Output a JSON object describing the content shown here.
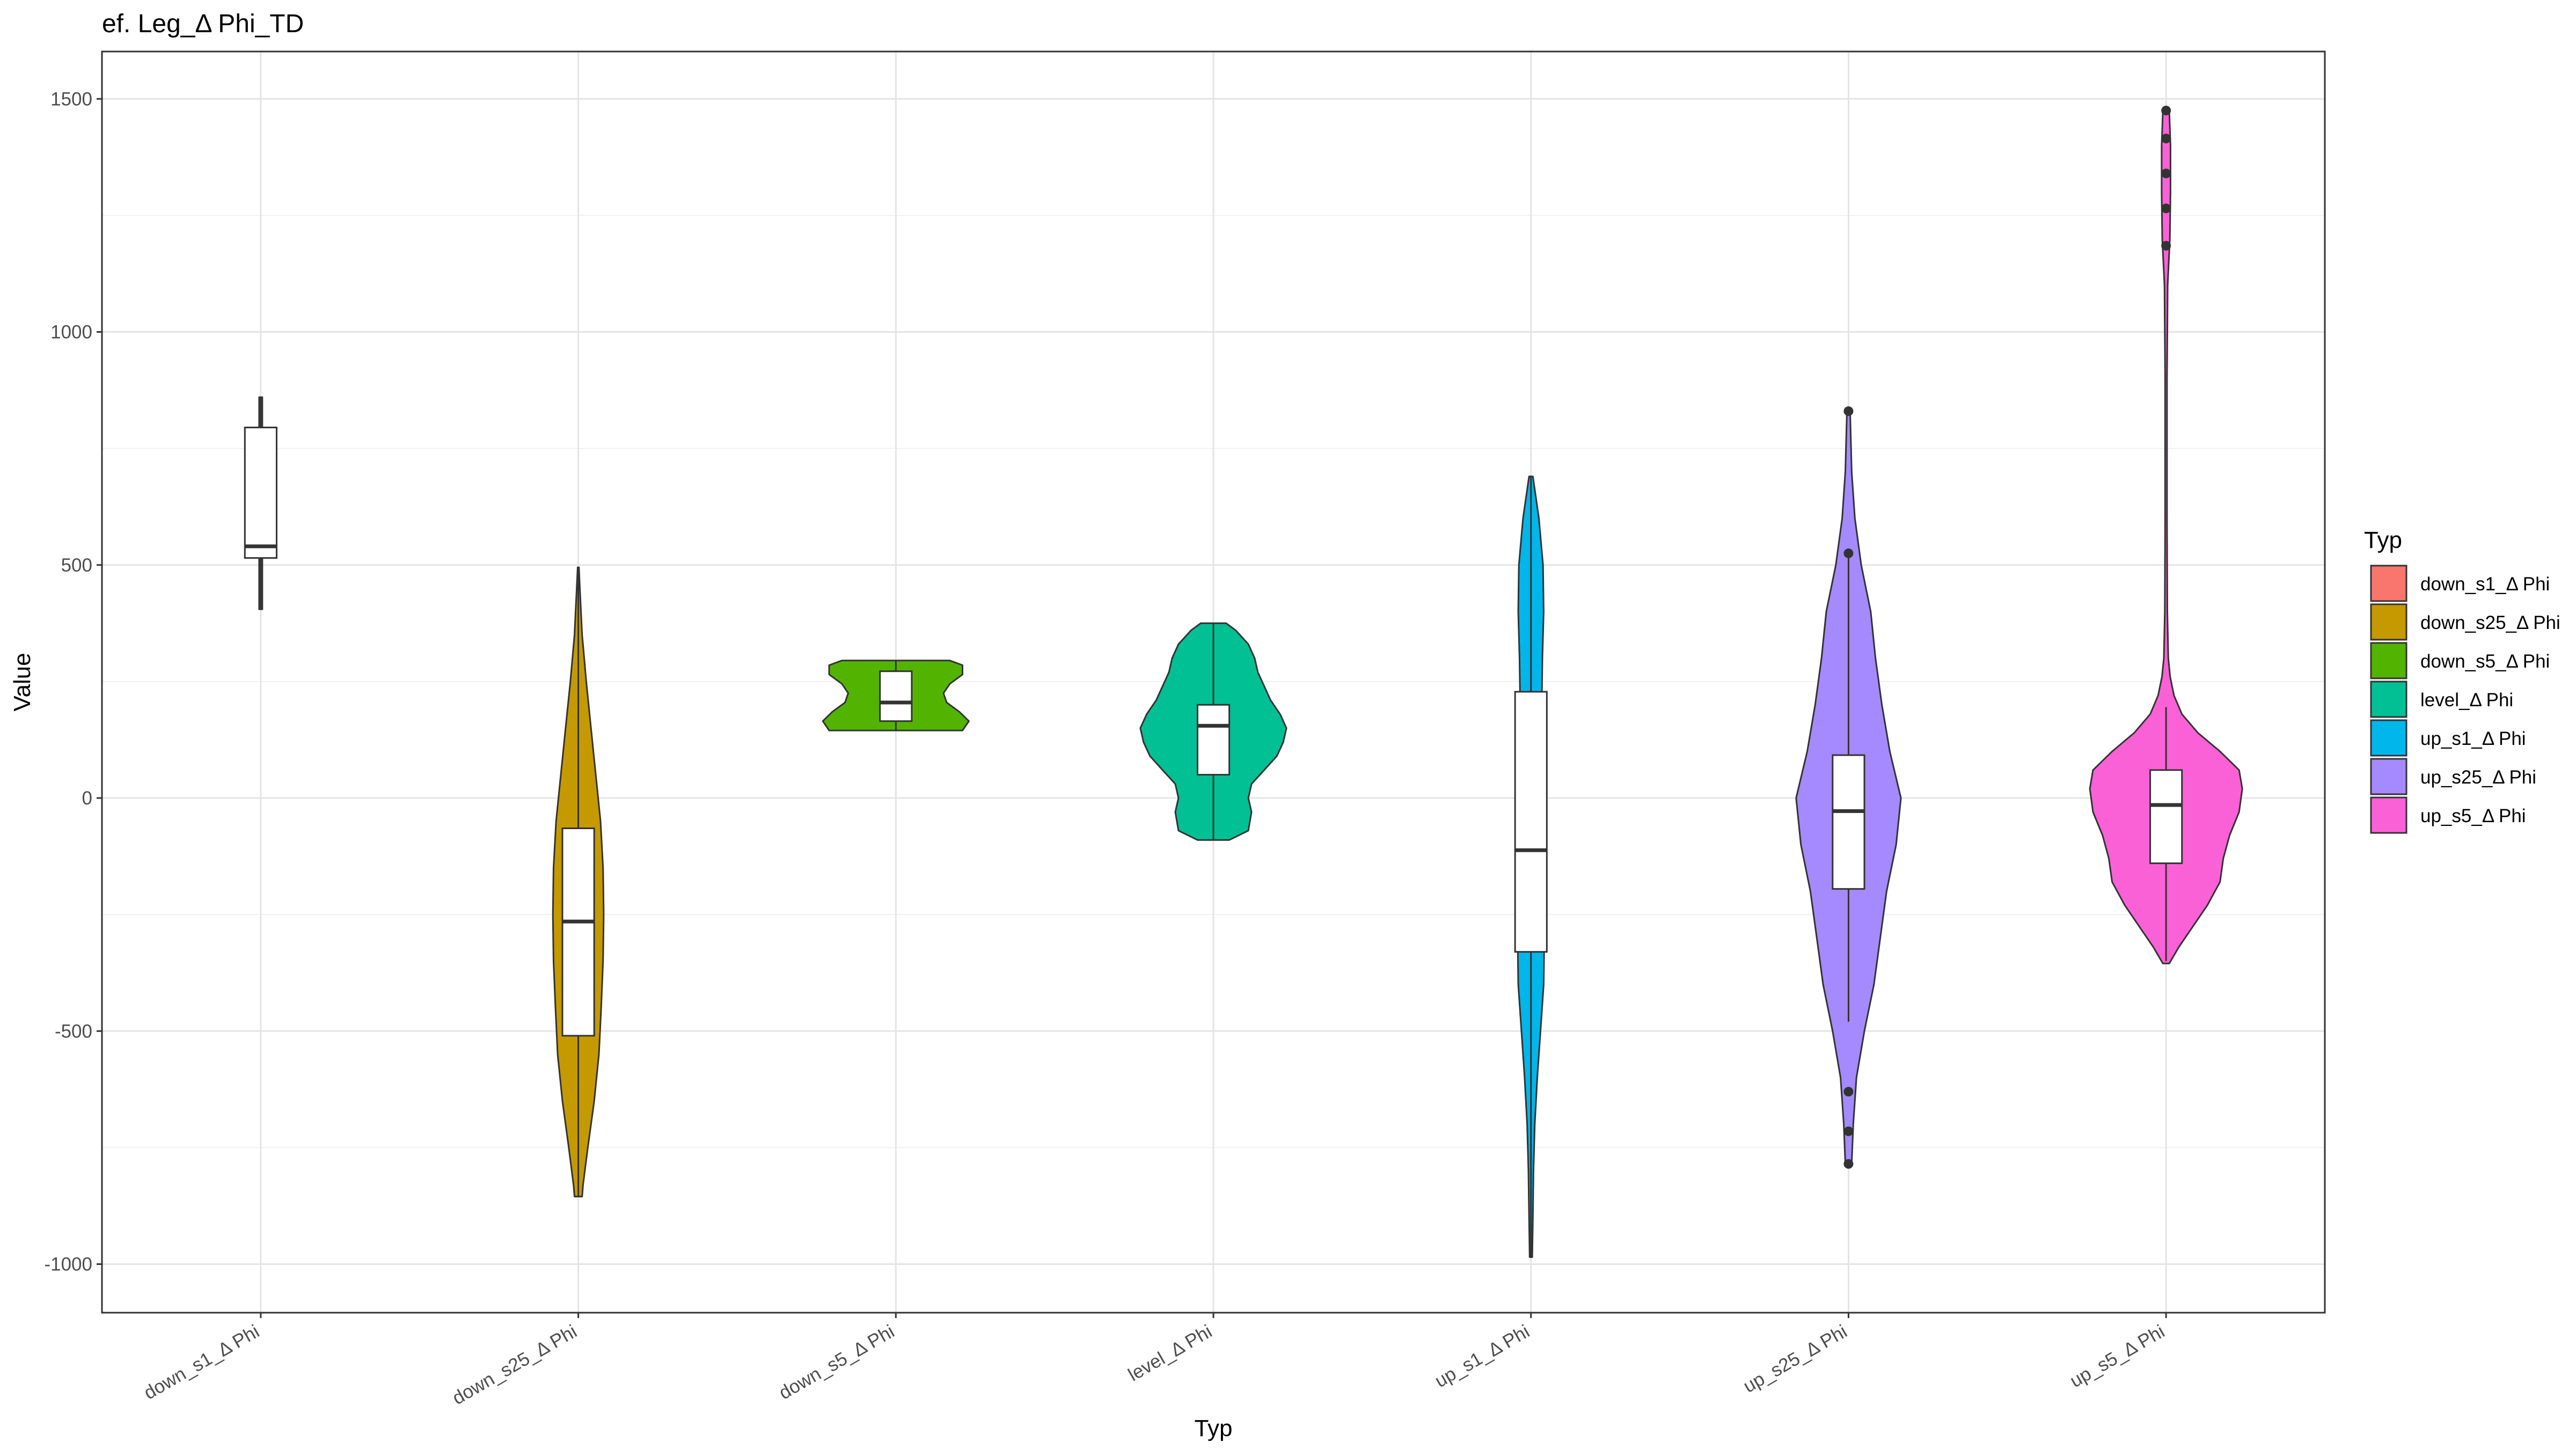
{
  "chart_data": {
    "type": "violin",
    "title": "ef. Leg_Δ Phi_TD",
    "xlabel": "Typ",
    "ylabel": "Value",
    "ylim": [
      -1100,
      1600
    ],
    "yticks": [
      -1000,
      -500,
      0,
      500,
      1000,
      1500
    ],
    "grid": true,
    "legend": {
      "title": "Typ",
      "placement": "right",
      "entries": [
        "down_s1_Δ Phi",
        "down_s25_Δ Phi",
        "down_s5_Δ Phi",
        "level_Δ Phi",
        "up_s1_Δ Phi",
        "up_s25_Δ Phi",
        "up_s5_Δ Phi"
      ]
    },
    "categories": [
      "down_s1_Δ Phi",
      "down_s25_Δ Phi",
      "down_s5_Δ Phi",
      "level_Δ Phi",
      "up_s1_Δ Phi",
      "up_s25_Δ Phi",
      "up_s5_Δ Phi"
    ],
    "colors": [
      "#F8766D",
      "#C49A00",
      "#53B400",
      "#00C094",
      "#00B6EB",
      "#A58AFF",
      "#FB61D7"
    ],
    "series": [
      {
        "name": "down_s1_Δ Phi",
        "box": {
          "q1": 515,
          "median": 540,
          "q3": 795,
          "whisker_low": 405,
          "whisker_high": 860
        },
        "outliers": [],
        "violin": {
          "y": [
            405,
            860
          ],
          "halfwidth": [
            0.005,
            0.005
          ]
        }
      },
      {
        "name": "down_s25_Δ Phi",
        "box": {
          "q1": -510,
          "median": -265,
          "q3": -65,
          "whisker_low": -855,
          "whisker_high": 495
        },
        "outliers": [],
        "violin": {
          "y": [
            -855,
            -830,
            -750,
            -650,
            -550,
            -450,
            -350,
            -250,
            -150,
            -50,
            50,
            150,
            250,
            350,
            450,
            495
          ],
          "halfwidth": [
            0.012,
            0.015,
            0.03,
            0.05,
            0.065,
            0.072,
            0.078,
            0.08,
            0.078,
            0.07,
            0.055,
            0.04,
            0.025,
            0.012,
            0.005,
            0.002
          ]
        }
      },
      {
        "name": "down_s5_Δ Phi",
        "box": {
          "q1": 165,
          "median": 205,
          "q3": 272,
          "whisker_low": 145,
          "whisker_high": 295
        },
        "outliers": [],
        "violin": {
          "y": [
            145,
            165,
            185,
            205,
            225,
            245,
            265,
            285,
            295
          ],
          "halfwidth": [
            0.21,
            0.23,
            0.2,
            0.16,
            0.15,
            0.17,
            0.21,
            0.21,
            0.17
          ]
        }
      },
      {
        "name": "level_Δ Phi",
        "box": {
          "q1": 50,
          "median": 155,
          "q3": 200,
          "whisker_low": -90,
          "whisker_high": 375
        },
        "outliers": [],
        "violin": {
          "y": [
            -90,
            -70,
            -30,
            0,
            30,
            60,
            90,
            120,
            150,
            180,
            210,
            240,
            270,
            300,
            330,
            360,
            375
          ],
          "halfwidth": [
            0.05,
            0.11,
            0.12,
            0.11,
            0.12,
            0.16,
            0.2,
            0.22,
            0.23,
            0.21,
            0.18,
            0.16,
            0.14,
            0.13,
            0.11,
            0.07,
            0.04
          ]
        }
      },
      {
        "name": "up_s1_Δ Phi",
        "box": {
          "q1": -330,
          "median": -112,
          "q3": 228,
          "whisker_low": -985,
          "whisker_high": 690
        },
        "outliers": [],
        "violin": {
          "y": [
            -985,
            -900,
            -800,
            -700,
            -600,
            -500,
            -400,
            -300,
            -200,
            -100,
            0,
            100,
            200,
            300,
            400,
            500,
            600,
            690
          ],
          "halfwidth": [
            0.004,
            0.006,
            0.008,
            0.012,
            0.02,
            0.03,
            0.04,
            0.042,
            0.042,
            0.04,
            0.036,
            0.034,
            0.034,
            0.036,
            0.04,
            0.038,
            0.025,
            0.006
          ]
        }
      },
      {
        "name": "up_s25_Δ Phi",
        "box": {
          "q1": -195,
          "median": -28,
          "q3": 92,
          "whisker_low": -480,
          "whisker_high": 530
        },
        "outliers": [
          -630,
          -715,
          -785,
          525,
          830
        ],
        "violin": {
          "y": [
            -785,
            -700,
            -600,
            -500,
            -400,
            -300,
            -200,
            -100,
            0,
            100,
            200,
            300,
            400,
            500,
            600,
            700,
            830
          ],
          "halfwidth": [
            0.01,
            0.015,
            0.025,
            0.05,
            0.08,
            0.1,
            0.12,
            0.15,
            0.165,
            0.13,
            0.105,
            0.085,
            0.07,
            0.04,
            0.02,
            0.01,
            0.005
          ]
        }
      },
      {
        "name": "up_s5_Δ Phi",
        "box": {
          "q1": -140,
          "median": -15,
          "q3": 60,
          "whisker_low": -350,
          "whisker_high": 195
        },
        "outliers": [
          1185,
          1265,
          1340,
          1415,
          1475
        ],
        "violin": {
          "y": [
            -355,
            -320,
            -280,
            -230,
            -180,
            -130,
            -80,
            -30,
            20,
            60,
            100,
            140,
            180,
            220,
            260,
            300,
            400,
            600,
            900,
            1100,
            1200,
            1300,
            1400,
            1475
          ],
          "halfwidth": [
            0.01,
            0.04,
            0.08,
            0.13,
            0.17,
            0.18,
            0.2,
            0.23,
            0.24,
            0.23,
            0.17,
            0.1,
            0.05,
            0.025,
            0.013,
            0.007,
            0.004,
            0.003,
            0.003,
            0.005,
            0.012,
            0.014,
            0.014,
            0.01
          ]
        }
      }
    ]
  }
}
